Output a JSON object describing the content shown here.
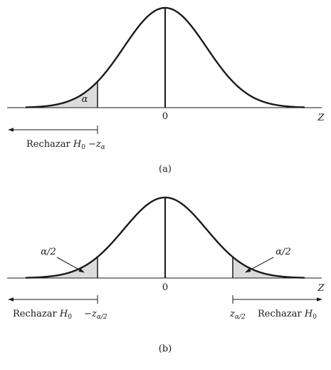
{
  "panel_a": {
    "caption": "(a)",
    "zero_label": "0",
    "axis_label": "Z",
    "alpha_label": "α",
    "reject_text": "Rechazar",
    "reject_var": "H",
    "reject_sub": "0",
    "crit_minus": "−",
    "crit_var": "z",
    "crit_sub": "α"
  },
  "panel_b": {
    "caption": "(b)",
    "zero_label": "0",
    "axis_label": "Z",
    "alpha_half_left": "α/2",
    "alpha_half_right": "α/2",
    "reject_left_text": "Rechazar",
    "reject_left_var": "H",
    "reject_left_sub": "0",
    "crit_left_minus": "−",
    "crit_left_var": "z",
    "crit_left_sub": "α/2",
    "crit_right_var": "z",
    "crit_right_sub": "α/2",
    "reject_right_text": "Rechazar",
    "reject_right_var": "H",
    "reject_right_sub": "0"
  },
  "colors": {
    "line": "#1a1a1a",
    "shade": "#dcdcdc"
  }
}
